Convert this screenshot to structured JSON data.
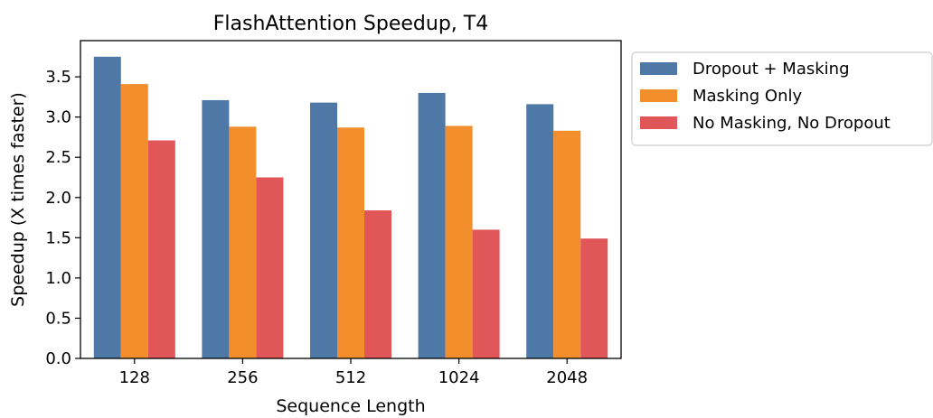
{
  "chart_data": {
    "type": "bar",
    "title": "FlashAttention Speedup, T4",
    "xlabel": "Sequence Length",
    "ylabel": "Speedup (X times faster)",
    "categories": [
      "128",
      "256",
      "512",
      "1024",
      "2048"
    ],
    "series": [
      {
        "name": "Dropout + Masking",
        "color": "#4e79a7",
        "values": [
          3.75,
          3.21,
          3.18,
          3.3,
          3.16
        ]
      },
      {
        "name": "Masking Only",
        "color": "#f28e2b",
        "values": [
          3.41,
          2.88,
          2.87,
          2.89,
          2.83
        ]
      },
      {
        "name": "No Masking, No Dropout",
        "color": "#e15759",
        "values": [
          2.71,
          2.25,
          1.84,
          1.6,
          1.49
        ]
      }
    ],
    "ylim": [
      0,
      3.95
    ],
    "yticks": [
      0.0,
      0.5,
      1.0,
      1.5,
      2.0,
      2.5,
      3.0,
      3.5
    ],
    "ytick_labels": [
      "0.0",
      "0.5",
      "1.0",
      "1.5",
      "2.0",
      "2.5",
      "3.0",
      "3.5"
    ],
    "grid": false,
    "legend_position": "outside-top-right"
  }
}
